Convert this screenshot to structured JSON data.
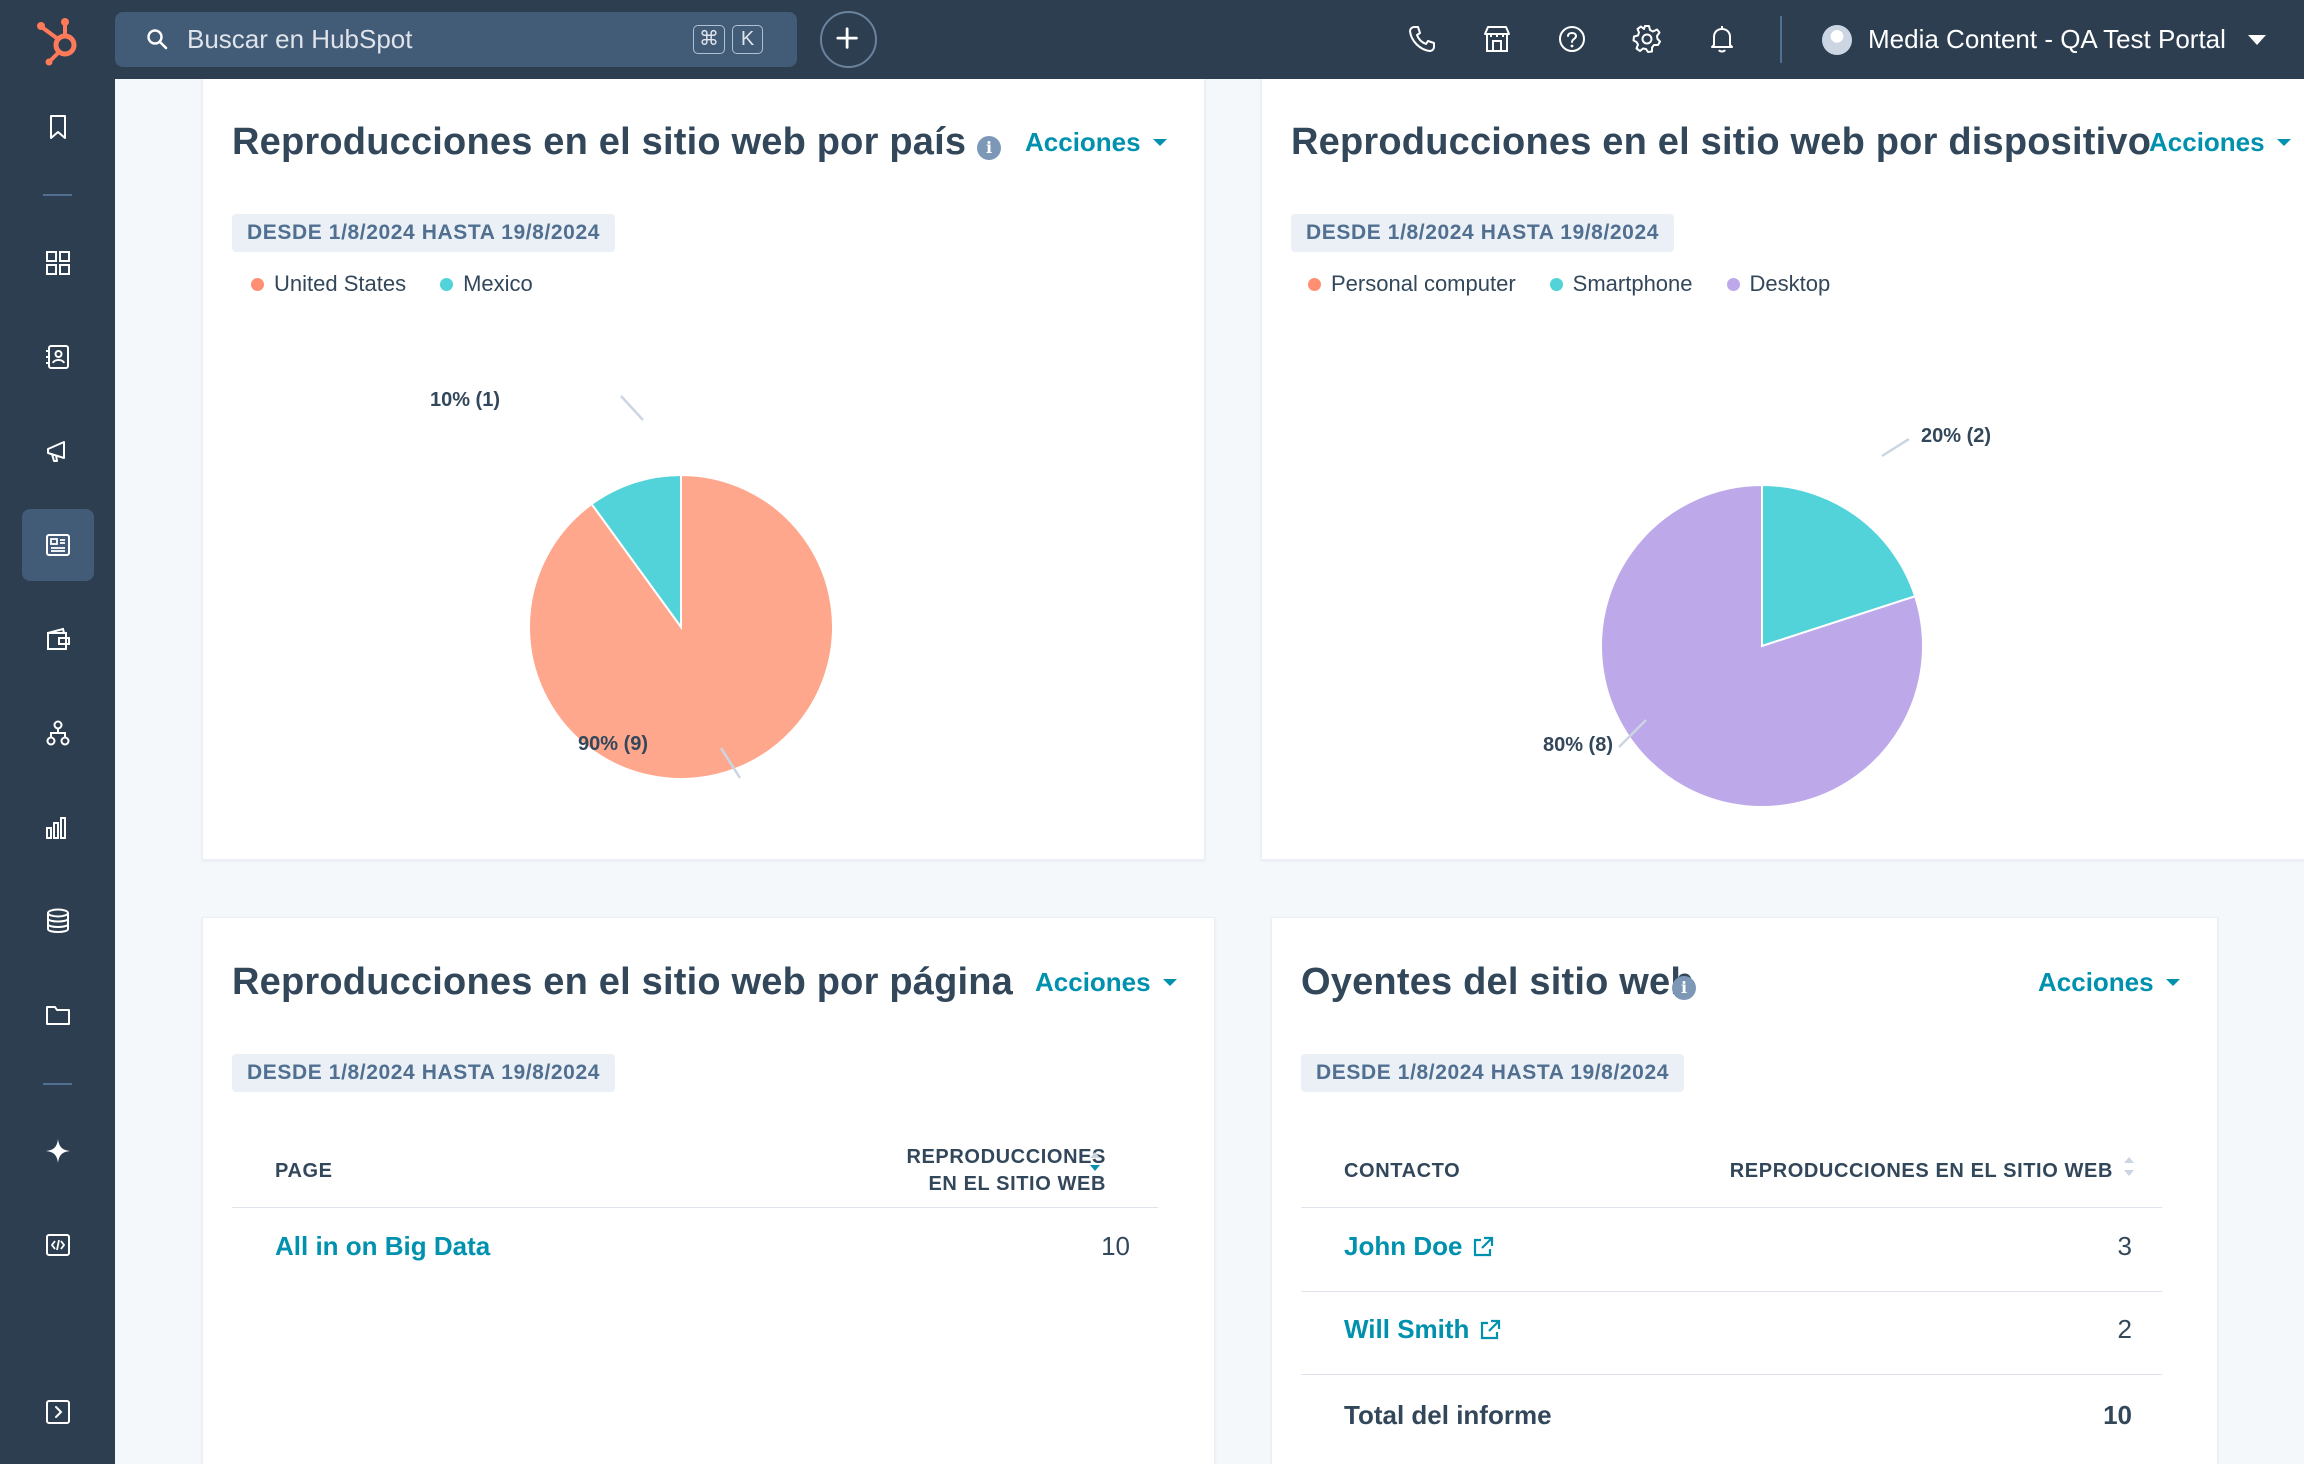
{
  "topbar": {
    "search_placeholder": "Buscar en HubSpot",
    "shortcut_cmd": "⌘",
    "shortcut_key": "K",
    "portal_name": "Media Content - QA Test Portal"
  },
  "cards": {
    "country": {
      "title": "Reproducciones en el sitio web por país",
      "actions": "Acciones",
      "date_range": "DESDE 1/8/2024 HASTA 19/8/2024",
      "legend": [
        {
          "label": "United States",
          "color": "#ffa78c"
        },
        {
          "label": "Mexico",
          "color": "#51d3d9"
        }
      ]
    },
    "device": {
      "title": "Reproducciones en el sitio web por dispositivo",
      "actions": "Acciones",
      "date_range": "DESDE 1/8/2024 HASTA 19/8/2024",
      "legend": [
        {
          "label": "Personal computer",
          "color": "#ff8f73"
        },
        {
          "label": "Smartphone",
          "color": "#51d3d9"
        },
        {
          "label": "Desktop",
          "color": "#bda9ea"
        }
      ]
    },
    "page": {
      "title": "Reproducciones en el sitio web por página",
      "actions": "Acciones",
      "date_range": "DESDE 1/8/2024 HASTA 19/8/2024",
      "col_page": "PAGE",
      "col_plays_line1": "REPRODUCCIONES",
      "col_plays_line2": "EN EL SITIO WEB",
      "rows": [
        {
          "page": "All in on Big Data",
          "plays": "10"
        }
      ]
    },
    "listeners": {
      "title": "Oyentes del sitio web",
      "actions": "Acciones",
      "date_range": "DESDE 1/8/2024 HASTA 19/8/2024",
      "col_contact": "CONTACTO",
      "col_plays": "REPRODUCCIONES EN EL SITIO WEB",
      "rows": [
        {
          "contact": "John Doe",
          "plays": "3"
        },
        {
          "contact": "Will Smith",
          "plays": "2"
        }
      ],
      "total_label": "Total del informe",
      "total_value": "10"
    }
  },
  "chart_data": [
    {
      "type": "pie",
      "title": "Reproducciones en el sitio web por país",
      "categories": [
        "United States",
        "Mexico"
      ],
      "values": [
        9,
        1
      ],
      "labels": [
        "90% (9)",
        "10% (1)"
      ],
      "colors": [
        "#ffa78c",
        "#51d3d9"
      ]
    },
    {
      "type": "pie",
      "title": "Reproducciones en el sitio web por dispositivo",
      "categories": [
        "Personal computer",
        "Smartphone",
        "Desktop"
      ],
      "values": [
        0,
        2,
        8
      ],
      "labels": [
        "",
        "20% (2)",
        "80% (8)"
      ],
      "colors": [
        "#ff8f73",
        "#51d3d9",
        "#bda9ea"
      ]
    }
  ]
}
